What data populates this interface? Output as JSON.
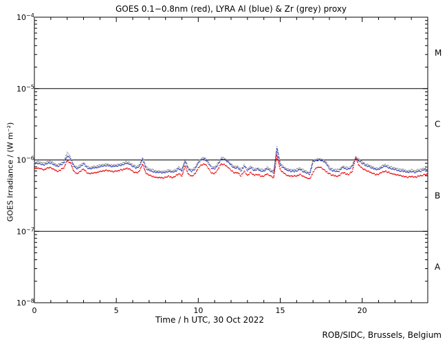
{
  "credit": "ROB/SIDC, Brussels, Belgium",
  "colors": {
    "goes_red": "#ee0000",
    "lyra_al_blue": "#3344bb",
    "lyra_zr_grey": "#999999",
    "frame": "#000000",
    "background": "#ffffff"
  },
  "axes": {
    "x": {
      "min": 0,
      "max": 24,
      "major_ticks": [
        0,
        5,
        10,
        15,
        20
      ],
      "minor_step": 1
    },
    "y": {
      "scale": "log",
      "min": 1e-08,
      "max": 0.0001,
      "decade_exponents": [
        -8,
        -7,
        -6,
        -5,
        -4
      ]
    },
    "class_lines": [
      1e-05,
      1e-06,
      1e-07
    ],
    "class_labels": [
      {
        "label": "M",
        "value": 3.16e-05
      },
      {
        "label": "C",
        "value": 3.16e-06
      },
      {
        "label": "B",
        "value": 3.16e-07
      },
      {
        "label": "A",
        "value": 3.16e-08
      }
    ]
  },
  "chart_data": {
    "type": "scatter",
    "title": "GOES 0.1−0.8nm (red), LYRA Al (blue) & Zr (grey) proxy",
    "xlabel": "Time / h UTC, 30 Oct 2022",
    "ylabel": "GOES Irradiance / (W m⁻²)",
    "xlim": [
      0,
      24
    ],
    "ylim": [
      1e-08,
      0.0001
    ],
    "x_start": 0,
    "x_step": 0.2,
    "unit": "W m^-2",
    "series": [
      {
        "name": "GOES 0.1-0.8nm",
        "color_key": "goes_red",
        "values": [
          7.5e-07,
          7.7e-07,
          7.5e-07,
          7.3e-07,
          7.7e-07,
          7.8e-07,
          7.3e-07,
          6.9e-07,
          7.3e-07,
          7.8e-07,
          9.8e-07,
          9.2e-07,
          7e-07,
          6.4e-07,
          6.9e-07,
          7.5e-07,
          6.7e-07,
          6.4e-07,
          6.6e-07,
          6.7e-07,
          6.9e-07,
          7e-07,
          7.2e-07,
          7e-07,
          6.9e-07,
          7e-07,
          7.2e-07,
          7.3e-07,
          7.7e-07,
          7.5e-07,
          6.9e-07,
          6.6e-07,
          6.9e-07,
          8.8e-07,
          6.6e-07,
          6.1e-07,
          5.9e-07,
          5.7e-07,
          5.7e-07,
          5.6e-07,
          5.7e-07,
          5.9e-07,
          5.7e-07,
          5.9e-07,
          6.4e-07,
          6e-07,
          8.2e-07,
          6.3e-07,
          5.9e-07,
          6.4e-07,
          7.7e-07,
          8.6e-07,
          8.8e-07,
          7.8e-07,
          6.6e-07,
          6.4e-07,
          7.3e-07,
          8.8e-07,
          8.6e-07,
          8e-07,
          7.2e-07,
          6.6e-07,
          6.7e-07,
          6e-07,
          7e-07,
          6.1e-07,
          6.7e-07,
          6.1e-07,
          6.3e-07,
          6e-07,
          5.9e-07,
          6.4e-07,
          6e-07,
          5.6e-07,
          1.17e-06,
          7.3e-07,
          6.6e-07,
          6.1e-07,
          6e-07,
          5.9e-07,
          6e-07,
          6.3e-07,
          5.9e-07,
          5.6e-07,
          5.4e-07,
          6.7e-07,
          7.8e-07,
          8e-07,
          7.5e-07,
          6.9e-07,
          6.4e-07,
          6.1e-07,
          5.9e-07,
          6e-07,
          6.7e-07,
          6.4e-07,
          6.3e-07,
          7e-07,
          1.09e-06,
          8.4e-07,
          7.7e-07,
          7.2e-07,
          6.9e-07,
          6.6e-07,
          6.3e-07,
          6.3e-07,
          6.7e-07,
          7e-07,
          6.7e-07,
          6.4e-07,
          6.3e-07,
          6.1e-07,
          6e-07,
          5.9e-07,
          5.7e-07,
          5.9e-07,
          5.7e-07,
          5.9e-07,
          6e-07,
          6.3e-07,
          6.4e-07
        ]
      },
      {
        "name": "LYRA Al",
        "color_key": "lyra_al_blue",
        "values": [
          8.8e-07,
          9e-07,
          8.8e-07,
          8.5e-07,
          9e-07,
          9.1e-07,
          8.5e-07,
          8.1e-07,
          8.5e-07,
          9.1e-07,
          1.14e-06,
          1.05e-06,
          8.2e-07,
          7.5e-07,
          8.1e-07,
          8.8e-07,
          7.8e-07,
          7.5e-07,
          7.7e-07,
          7.8e-07,
          8.1e-07,
          8.2e-07,
          8.4e-07,
          8.2e-07,
          8.1e-07,
          8.2e-07,
          8.4e-07,
          8.5e-07,
          9e-07,
          8.8e-07,
          8.1e-07,
          7.7e-07,
          8.1e-07,
          1.03e-06,
          7.7e-07,
          7.1e-07,
          6.9e-07,
          6.7e-07,
          6.7e-07,
          6.6e-07,
          6.7e-07,
          6.9e-07,
          6.7e-07,
          6.9e-07,
          7.5e-07,
          7e-07,
          9.6e-07,
          7.4e-07,
          6.9e-07,
          7.5e-07,
          9e-07,
          1.01e-06,
          1.03e-06,
          9.1e-07,
          7.7e-07,
          7.5e-07,
          8.5e-07,
          1.03e-06,
          1.01e-06,
          9.4e-07,
          8.4e-07,
          7.7e-07,
          7.8e-07,
          7e-07,
          8.2e-07,
          7.1e-07,
          7.8e-07,
          7.1e-07,
          7.4e-07,
          7e-07,
          6.9e-07,
          7.5e-07,
          7e-07,
          6.6e-07,
          1.46e-06,
          8.5e-07,
          7.7e-07,
          7.1e-07,
          7e-07,
          6.9e-07,
          7e-07,
          7.4e-07,
          6.9e-07,
          6.6e-07,
          6.3e-07,
          9.4e-07,
          9.8e-07,
          1e-06,
          9.6e-07,
          9e-07,
          7.5e-07,
          7.1e-07,
          6.9e-07,
          7e-07,
          7.8e-07,
          7.5e-07,
          7.4e-07,
          8.2e-07,
          1.05e-06,
          9.8e-07,
          9e-07,
          8.4e-07,
          8.1e-07,
          7.7e-07,
          7.4e-07,
          7.4e-07,
          7.8e-07,
          8.2e-07,
          7.8e-07,
          7.5e-07,
          7.4e-07,
          7.1e-07,
          7e-07,
          6.9e-07,
          6.7e-07,
          6.9e-07,
          6.7e-07,
          6.9e-07,
          7e-07,
          7.4e-07,
          7.5e-07
        ]
      },
      {
        "name": "LYRA Zr proxy",
        "color_key": "lyra_zr_grey",
        "values": [
          9.2e-07,
          9.5e-07,
          9.2e-07,
          9e-07,
          9.5e-07,
          9.6e-07,
          9e-07,
          8.5e-07,
          9e-07,
          9.6e-07,
          1.28e-06,
          1.11e-06,
          8.6e-07,
          7.9e-07,
          8.5e-07,
          9.2e-07,
          8.2e-07,
          7.9e-07,
          8.1e-07,
          8.2e-07,
          8.5e-07,
          8.6e-07,
          8.8e-07,
          8.6e-07,
          8.5e-07,
          8.6e-07,
          8.8e-07,
          9e-07,
          9.5e-07,
          9.2e-07,
          8.5e-07,
          8.1e-07,
          8.5e-07,
          1.08e-06,
          8.1e-07,
          7.5e-07,
          7.3e-07,
          7e-07,
          7e-07,
          6.9e-07,
          7e-07,
          7.3e-07,
          7e-07,
          7.3e-07,
          7.9e-07,
          7.4e-07,
          1.01e-06,
          7.7e-07,
          7.3e-07,
          7.9e-07,
          9.5e-07,
          1.06e-06,
          1.08e-06,
          9.6e-07,
          8.1e-07,
          7.9e-07,
          9e-07,
          1.08e-06,
          1.06e-06,
          9.8e-07,
          8.8e-07,
          8.1e-07,
          8.2e-07,
          7.4e-07,
          8.6e-07,
          7.5e-07,
          8.2e-07,
          7.5e-07,
          7.7e-07,
          7.4e-07,
          7.3e-07,
          7.9e-07,
          7.4e-07,
          6.9e-07,
          1.52e-06,
          9e-07,
          8.1e-07,
          7.5e-07,
          7.4e-07,
          7.3e-07,
          7.4e-07,
          7.7e-07,
          7.3e-07,
          6.9e-07,
          6.6e-07,
          9.9e-07,
          1.03e-06,
          1.05e-06,
          1.01e-06,
          9.4e-07,
          7.9e-07,
          7.5e-07,
          7.3e-07,
          7.4e-07,
          8.2e-07,
          7.9e-07,
          7.7e-07,
          8.6e-07,
          1.09e-06,
          1.03e-06,
          9.5e-07,
          8.8e-07,
          8.5e-07,
          8.1e-07,
          7.7e-07,
          7.7e-07,
          8.2e-07,
          8.6e-07,
          8.2e-07,
          7.9e-07,
          7.7e-07,
          7.5e-07,
          7.4e-07,
          7.3e-07,
          7e-07,
          7.3e-07,
          7e-07,
          7.3e-07,
          7.4e-07,
          7.7e-07,
          7.9e-07
        ]
      }
    ]
  }
}
